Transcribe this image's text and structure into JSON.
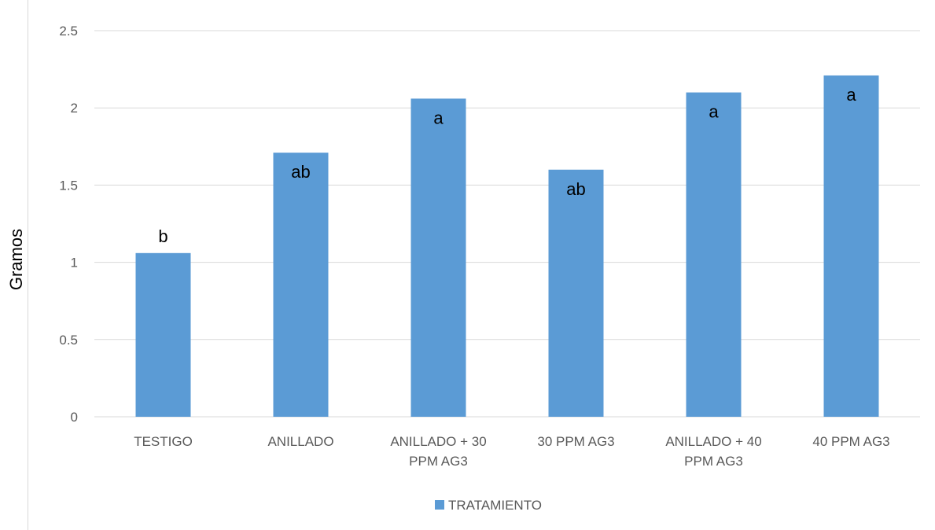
{
  "chart_data": {
    "type": "bar",
    "title": "",
    "xlabel": "",
    "ylabel": "Gramos",
    "ylim": [
      0,
      2.5
    ],
    "yticks": [
      "0",
      "0.5",
      "1",
      "1.5",
      "2",
      "2.5"
    ],
    "grid": true,
    "legend_position": "bottom",
    "categories": [
      [
        "TESTIGO"
      ],
      [
        "ANILLADO"
      ],
      [
        "ANILLADO + 30",
        "PPM AG3"
      ],
      [
        "30 PPM AG3"
      ],
      [
        "ANILLADO + 40",
        "PPM AG3"
      ],
      [
        "40 PPM AG3"
      ]
    ],
    "series": [
      {
        "name": "TRATAMIENTO",
        "color": "#5b9bd5",
        "values": [
          1.06,
          1.71,
          2.06,
          1.6,
          2.1,
          2.21
        ],
        "labels": [
          "b",
          "ab",
          "a",
          "ab",
          "a",
          "a"
        ]
      }
    ]
  }
}
